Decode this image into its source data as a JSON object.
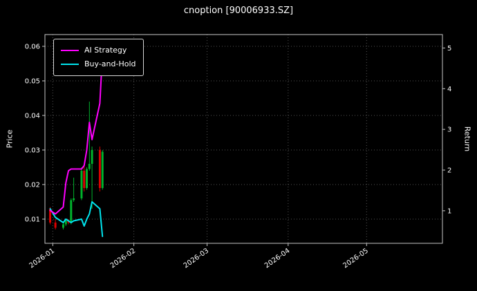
{
  "chart_data": {
    "type": "line",
    "title": "cnoption [90006933.SZ]",
    "ylabel_left": "Price",
    "ylabel_right": "Return",
    "legend_position": "upper-left",
    "grid": true,
    "x_ticks": [
      "2026-01",
      "2026-02",
      "2026-03",
      "2026-04",
      "2026-05"
    ],
    "y_ticks_left": [
      0.01,
      0.02,
      0.03,
      0.04,
      0.05,
      0.06
    ],
    "y_ticks_right": [
      1,
      2,
      3,
      4,
      5
    ],
    "x_domain": [
      "2025-12-29",
      "2026-05-30"
    ],
    "price_domain": [
      0.003,
      0.0634
    ],
    "return_domain": [
      0.2,
      5.33
    ],
    "dates": [
      "2025-12-31",
      "2026-01-02",
      "2026-01-05",
      "2026-01-06",
      "2026-01-07",
      "2026-01-08",
      "2026-01-09",
      "2026-01-12",
      "2026-01-13",
      "2026-01-14",
      "2026-01-15",
      "2026-01-16",
      "2026-01-19",
      "2026-01-20"
    ],
    "series": [
      {
        "name": "AI Strategy",
        "color": "#ff00ff",
        "values": [
          0.0125,
          0.0115,
          0.0135,
          0.0205,
          0.024,
          0.0245,
          0.0245,
          0.0245,
          0.0255,
          0.03,
          0.038,
          0.033,
          0.0435,
          0.058
        ]
      },
      {
        "name": "Buy-and-Hold",
        "color": "#00e5ee",
        "values": [
          0.013,
          0.0105,
          0.009,
          0.01,
          0.0095,
          0.009,
          0.0095,
          0.01,
          0.008,
          0.01,
          0.0115,
          0.015,
          0.013,
          0.005
        ]
      }
    ],
    "candles": {
      "up_color": "#00b32c",
      "down_color": "#dd0000",
      "ohlc": [
        [
          0.013,
          0.0135,
          0.0085,
          0.009
        ],
        [
          0.009,
          0.01,
          0.007,
          0.0075
        ],
        [
          0.0075,
          0.009,
          0.007,
          0.0085
        ],
        [
          0.0085,
          0.01,
          0.008,
          0.0095
        ],
        [
          0.0095,
          0.01,
          0.0085,
          0.009
        ],
        [
          0.009,
          0.016,
          0.0085,
          0.0155
        ],
        [
          0.0155,
          0.022,
          0.015,
          0.016
        ],
        [
          0.016,
          0.025,
          0.0155,
          0.024
        ],
        [
          0.024,
          0.026,
          0.018,
          0.019
        ],
        [
          0.019,
          0.025,
          0.0185,
          0.0245
        ],
        [
          0.0245,
          0.044,
          0.024,
          0.026
        ],
        [
          0.026,
          0.031,
          0.013,
          0.03
        ],
        [
          0.03,
          0.031,
          0.018,
          0.019
        ],
        [
          0.019,
          0.03,
          0.0185,
          0.0295
        ]
      ]
    },
    "colors": {
      "background": "#000000",
      "text": "#ffffff",
      "grid": "#555555",
      "axis": "#c8c8c8"
    }
  }
}
